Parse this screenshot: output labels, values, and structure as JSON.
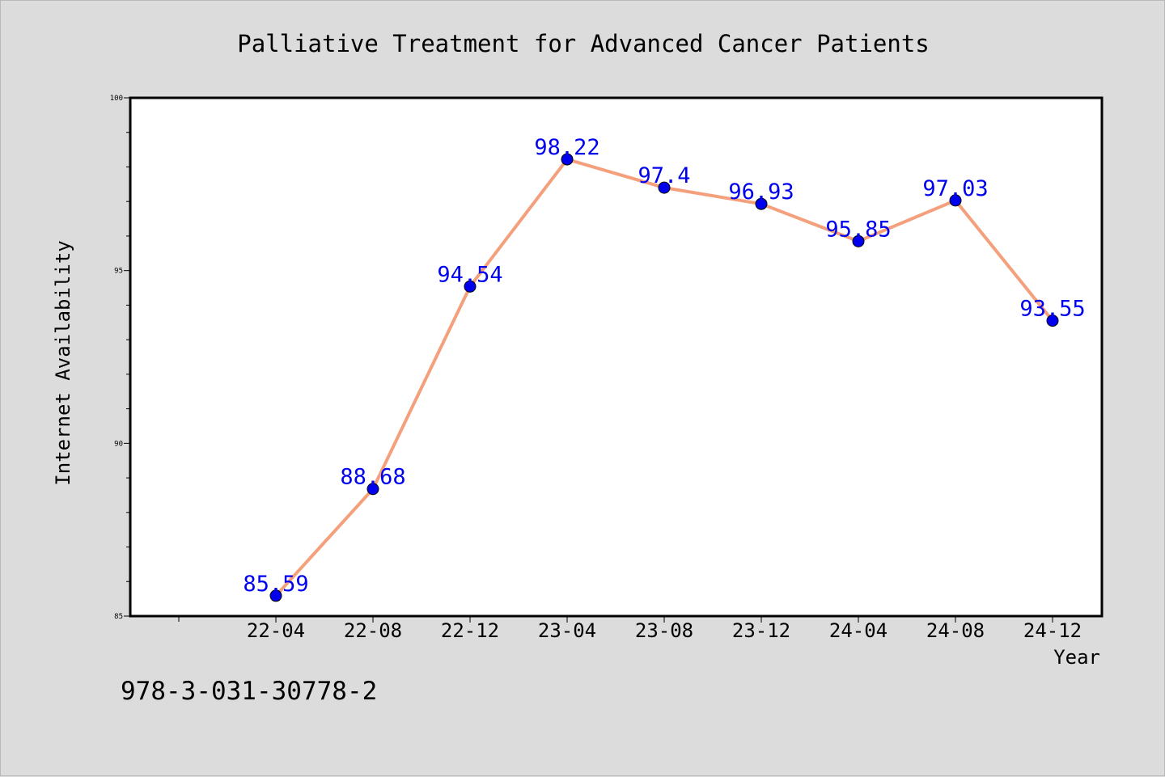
{
  "chart_data": {
    "type": "line",
    "title": "Palliative Treatment for Advanced Cancer Patients",
    "xlabel": "Year",
    "ylabel": "Internet Availability",
    "categories": [
      "22-04",
      "22-08",
      "22-12",
      "23-04",
      "23-08",
      "23-12",
      "24-04",
      "24-08",
      "24-12"
    ],
    "series": [
      {
        "values": [
          85.59,
          88.68,
          94.54,
          98.22,
          97.4,
          96.93,
          95.85,
          97.03,
          93.55
        ],
        "labels": [
          "85.59",
          "88.68",
          "94.54",
          "98.22",
          "97.4",
          "96.93",
          "95.85",
          "97.03",
          "93.55"
        ]
      }
    ],
    "ylim": [
      85,
      100
    ],
    "y_ticks": [
      "85",
      "90",
      "95",
      "100"
    ],
    "grid": false,
    "legend": "none",
    "colors": {
      "line": "#f4a07c",
      "marker": "#0000ee",
      "data_label": "#0000ee",
      "plot_background": "#ffffff",
      "page_background": "#dcdcdc"
    }
  },
  "footer_note": "978-3-031-30778-2"
}
